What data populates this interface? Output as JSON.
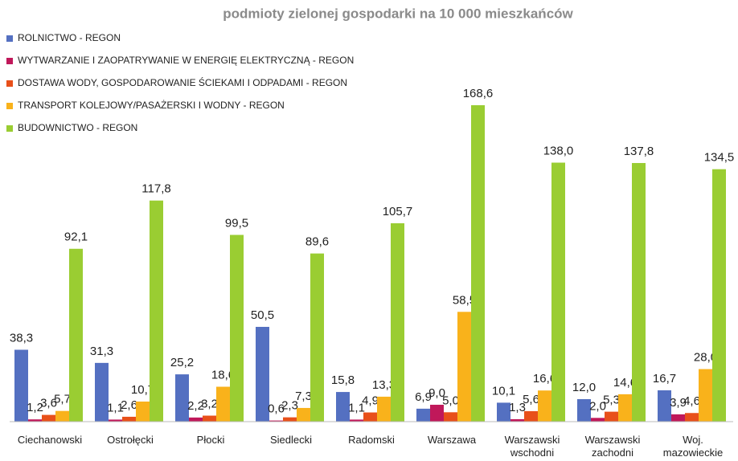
{
  "chart_data": {
    "type": "bar",
    "title": "podmioty zielonej gospodarki  na 10 000 mieszkańców",
    "categories": [
      "Ciechanowski",
      "Ostrołęcki",
      "Płocki",
      "Siedlecki",
      "Radomski",
      "Warszawa",
      "Warszawski\nwschodni",
      "Warszawski\nzachodni",
      "Woj.\nmazowieckie"
    ],
    "legend": "top-left",
    "series": [
      {
        "name": "ROLNICTWO - REGON",
        "color": "#5470c1",
        "values": [
          38.3,
          31.3,
          25.2,
          50.5,
          15.8,
          6.9,
          10.1,
          12.0,
          16.7
        ],
        "value_labels": [
          "38,3",
          "31,3",
          "25,2",
          "50,5",
          "15,8",
          "6,9",
          "10,1",
          "12,0",
          "16,7"
        ]
      },
      {
        "name": "WYTWARZANIE I ZAOPATRYWANIE W ENERGIĘ ELEKTRYCZNĄ - REGON",
        "color": "#c0185a",
        "values": [
          1.2,
          1.1,
          2.2,
          0.6,
          1.1,
          9.0,
          1.3,
          2.0,
          3.9
        ],
        "value_labels": [
          "1,2",
          "1,1",
          "2,2",
          "0,6",
          "1,1",
          "9,0",
          "1,3",
          "2,0",
          "3,9"
        ]
      },
      {
        "name": "DOSTAWA WODY, GOSPODAROWANIE ŚCIEKAMI I ODPADAMI  - REGON",
        "color": "#e8501a",
        "values": [
          3.6,
          2.6,
          3.2,
          2.3,
          4.9,
          5.0,
          5.6,
          5.3,
          4.6
        ],
        "value_labels": [
          "3,6",
          "2,6",
          "3,2",
          "2,3",
          "4,9",
          "5,0",
          "5,6",
          "5,3",
          "4,6"
        ]
      },
      {
        "name": "TRANSPORT KOLEJOWY/PASAŻERSKI I WODNY - REGON",
        "color": "#f9b21b",
        "values": [
          5.7,
          10.7,
          18.6,
          7.3,
          13.3,
          58.5,
          16.6,
          14.6,
          28.0
        ],
        "value_labels": [
          "5,7",
          "10,7",
          "18,6",
          "7,3",
          "13,3",
          "58,5",
          "16,6",
          "14,6",
          "28,0"
        ]
      },
      {
        "name": "BUDOWNICTWO - REGON",
        "color": "#9acd32",
        "values": [
          92.1,
          117.8,
          99.5,
          89.6,
          105.7,
          168.6,
          138.0,
          137.8,
          134.5
        ],
        "value_labels": [
          "92,1",
          "117,8",
          "99,5",
          "89,6",
          "105,7",
          "168,6",
          "138,0",
          "137,8",
          "134,5"
        ]
      }
    ]
  }
}
